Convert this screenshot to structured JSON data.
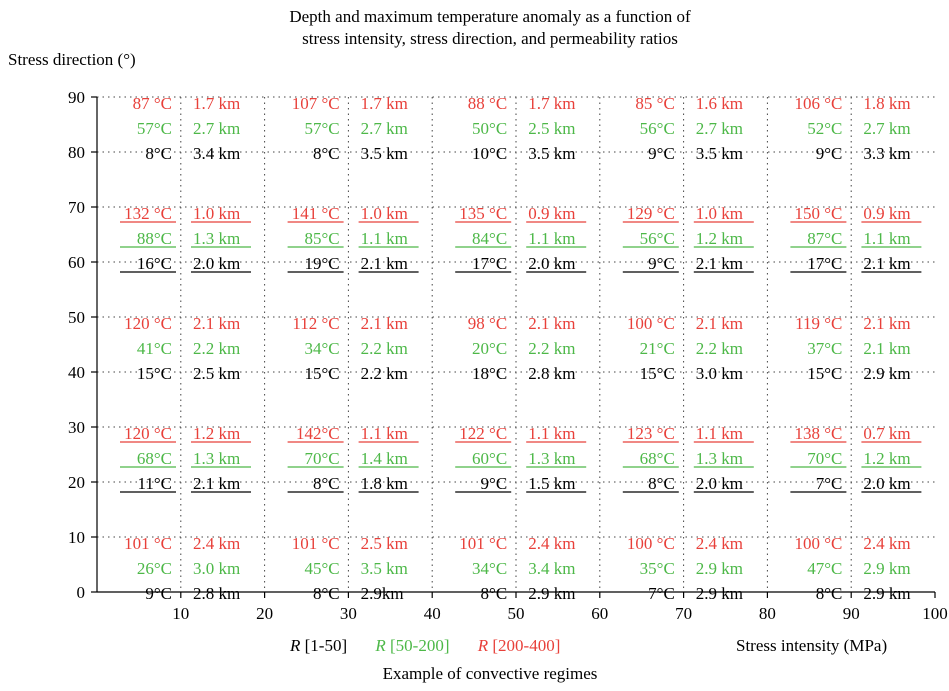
{
  "chart_data": {
    "type": "table",
    "title_lines": [
      "Depth and maximum temperature anomaly as a function of",
      "stress intensity, stress direction, and permeability ratios"
    ],
    "ylabel": "Stress direction (°)",
    "xlabel": "Stress intensity (MPa)",
    "xlim": [
      0,
      100
    ],
    "ylim": [
      0,
      90
    ],
    "x_ticks": [
      10,
      20,
      30,
      40,
      50,
      60,
      70,
      80,
      90,
      100
    ],
    "y_ticks": [
      0,
      10,
      20,
      30,
      40,
      50,
      60,
      70,
      80,
      90
    ],
    "grid": "dotted",
    "colors": {
      "R_1_50": "#000000",
      "R_50_200": "#4db848",
      "R_200_400": "#e8403a"
    },
    "legend": {
      "items": [
        {
          "symbol": "R",
          "range": " [1-50]",
          "color": "#000000"
        },
        {
          "symbol": "R",
          "range": " [50-200]",
          "color": "#4db848"
        },
        {
          "symbol": "R",
          "range": " [200-400]",
          "color": "#e8403a"
        }
      ],
      "caption": "Example of convective regimes"
    },
    "columns_x_range": [
      [
        0,
        20
      ],
      [
        20,
        40
      ],
      [
        40,
        60
      ],
      [
        60,
        80
      ],
      [
        80,
        100
      ]
    ],
    "cell_rows": [
      {
        "y_range": [
          80,
          90
        ],
        "underlined": false,
        "cells": [
          {
            "red": [
              "87 °C",
              "1.7 km"
            ],
            "green": [
              "57°C",
              "2.7 km"
            ],
            "black": [
              "8°C",
              "3.4 km"
            ]
          },
          {
            "red": [
              "107 °C",
              "1.7 km"
            ],
            "green": [
              "57°C",
              "2.7 km"
            ],
            "black": [
              "8°C",
              "3.5 km"
            ]
          },
          {
            "red": [
              "88 °C",
              "1.7 km"
            ],
            "green": [
              "50°C",
              "2.5 km"
            ],
            "black": [
              "10°C",
              "3.5 km"
            ]
          },
          {
            "red": [
              "85 °C",
              "1.6 km"
            ],
            "green": [
              "56°C",
              "2.7 km"
            ],
            "black": [
              "9°C",
              "3.5 km"
            ]
          },
          {
            "red": [
              "106 °C",
              "1.8 km"
            ],
            "green": [
              "52°C",
              "2.7 km"
            ],
            "black": [
              "9°C",
              "3.3 km"
            ]
          }
        ]
      },
      {
        "y_range": [
          60,
          70
        ],
        "underlined": true,
        "cells": [
          {
            "red": [
              "132 °C",
              "1.0 km"
            ],
            "green": [
              "88°C",
              "1.3 km"
            ],
            "black": [
              "16°C",
              "2.0 km"
            ]
          },
          {
            "red": [
              "141 °C",
              "1.0 km"
            ],
            "green": [
              "85°C",
              "1.1 km"
            ],
            "black": [
              "19°C",
              "2.1 km"
            ]
          },
          {
            "red": [
              "135 °C",
              "0.9 km"
            ],
            "green": [
              "84°C",
              "1.1 km"
            ],
            "black": [
              "17°C",
              "2.0 km"
            ]
          },
          {
            "red": [
              "129 °C",
              "1.0 km"
            ],
            "green": [
              "56°C",
              "1.2 km"
            ],
            "black": [
              "9°C",
              "2.1 km"
            ]
          },
          {
            "red": [
              "150 °C",
              "0.9 km"
            ],
            "green": [
              "87°C",
              "1.1 km"
            ],
            "black": [
              "17°C",
              "2.1 km"
            ]
          }
        ]
      },
      {
        "y_range": [
          40,
          50
        ],
        "underlined": false,
        "cells": [
          {
            "red": [
              "120 °C",
              "2.1 km"
            ],
            "green": [
              "41°C",
              "2.2 km"
            ],
            "black": [
              "15°C",
              "2.5 km"
            ]
          },
          {
            "red": [
              "112 °C",
              "2.1 km"
            ],
            "green": [
              "34°C",
              "2.2 km"
            ],
            "black": [
              "15°C",
              "2.2 km"
            ]
          },
          {
            "red": [
              "98 °C",
              "2.1 km"
            ],
            "green": [
              "20°C",
              "2.2 km"
            ],
            "black": [
              "18°C",
              "2.8 km"
            ]
          },
          {
            "red": [
              "100 °C",
              "2.1 km"
            ],
            "green": [
              "21°C",
              "2.2 km"
            ],
            "black": [
              "15°C",
              "3.0 km"
            ]
          },
          {
            "red": [
              "119 °C",
              "2.1 km"
            ],
            "green": [
              "37°C",
              "2.1 km"
            ],
            "black": [
              "15°C",
              "2.9 km"
            ]
          }
        ]
      },
      {
        "y_range": [
          20,
          30
        ],
        "underlined": true,
        "cells": [
          {
            "red": [
              "120 °C",
              "1.2 km"
            ],
            "green": [
              "68°C",
              "1.3 km"
            ],
            "black": [
              "11°C",
              "2.1 km"
            ]
          },
          {
            "red": [
              "142°C",
              "1.1 km"
            ],
            "green": [
              "70°C",
              "1.4 km"
            ],
            "black": [
              "8°C",
              "1.8 km"
            ]
          },
          {
            "red": [
              "122 °C",
              "1.1 km"
            ],
            "green": [
              "60°C",
              "1.3 km"
            ],
            "black": [
              "9°C",
              "1.5 km"
            ]
          },
          {
            "red": [
              "123 °C",
              "1.1 km"
            ],
            "green": [
              "68°C",
              "1.3 km"
            ],
            "black": [
              "8°C",
              "2.0 km"
            ]
          },
          {
            "red": [
              "138 °C",
              "0.7 km"
            ],
            "green": [
              "70°C",
              "1.2 km"
            ],
            "black": [
              "7°C",
              "2.0 km"
            ]
          }
        ]
      },
      {
        "y_range": [
          0,
          10
        ],
        "underlined": false,
        "cells": [
          {
            "red": [
              "101 °C",
              "2.4 km"
            ],
            "green": [
              "26°C",
              "3.0 km"
            ],
            "black": [
              "9°C",
              "2.8 km"
            ]
          },
          {
            "red": [
              "101 °C",
              "2.5 km"
            ],
            "green": [
              "45°C",
              "3.5 km"
            ],
            "black": [
              "8°C",
              "2.9km"
            ]
          },
          {
            "red": [
              "101 °C",
              "2.4 km"
            ],
            "green": [
              "34°C",
              "3.4 km"
            ],
            "black": [
              "8°C",
              "2.9 km"
            ]
          },
          {
            "red": [
              "100 °C",
              "2.4 km"
            ],
            "green": [
              "35°C",
              "2.9 km"
            ],
            "black": [
              "7°C",
              "2.9 km"
            ]
          },
          {
            "red": [
              "100 °C",
              "2.4 km"
            ],
            "green": [
              "47°C",
              "2.9 km"
            ],
            "black": [
              "8°C",
              "2.9 km"
            ]
          }
        ]
      }
    ]
  }
}
